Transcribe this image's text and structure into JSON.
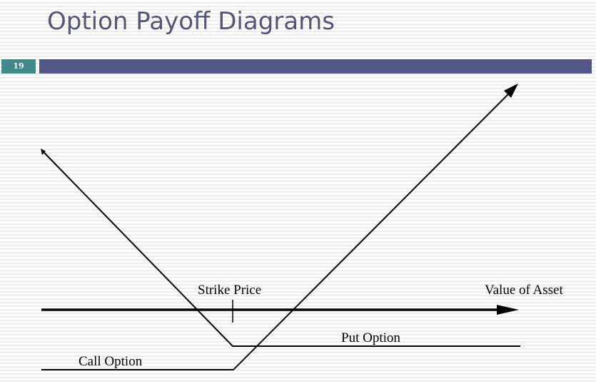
{
  "slide": {
    "title": "Option Payoff Diagrams",
    "number": "19"
  },
  "diagram": {
    "x_axis_label": "Value of Asset",
    "strike_label": "Strike Price",
    "put_label": "Put Option",
    "call_label": "Call Option"
  },
  "colors": {
    "title_text": "#555577",
    "title_bar": "#545587",
    "slide_number_bg": "#3f8a8a"
  }
}
